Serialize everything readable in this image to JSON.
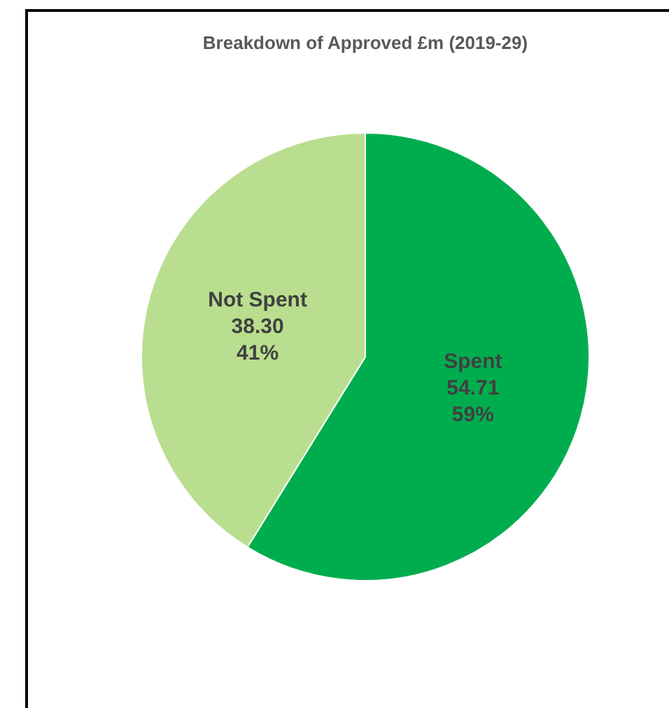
{
  "chart_data": {
    "type": "pie",
    "title": "Breakdown of Approved £m (2019-29)",
    "categories": [
      "Spent",
      "Not Spent"
    ],
    "values": [
      54.71,
      38.3
    ],
    "colors": [
      "#00ad4e",
      "#b9de8f"
    ],
    "value_labels": [
      "54.71\n59%",
      "38.30\n41%"
    ]
  }
}
